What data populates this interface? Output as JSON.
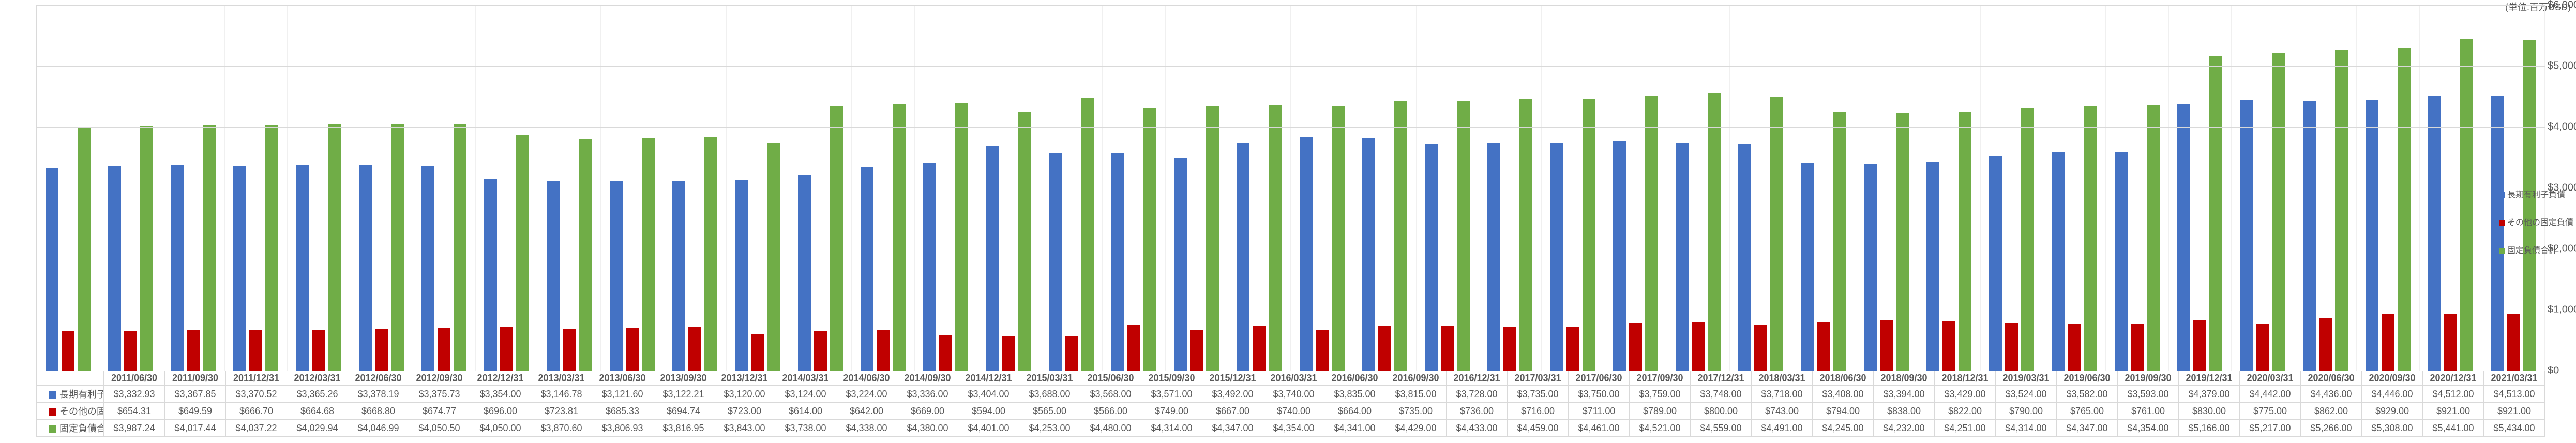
{
  "chart": {
    "type": "bar",
    "unit_label": "(単位:百万USD)",
    "ylim": [
      0,
      6000
    ],
    "ytick_step": 1000,
    "ytick_prefix": "$",
    "grid_color": "#d9d9d9",
    "background_color": "#ffffff",
    "series": [
      {
        "key": "s1",
        "label": "長期有利子負債",
        "color": "#4472c4"
      },
      {
        "key": "s2",
        "label": "その他の固定負債",
        "color": "#c00000"
      },
      {
        "key": "s3",
        "label": "固定負債合計",
        "color": "#70ad47"
      }
    ],
    "periods": [
      {
        "label": "2011/06/30",
        "s1": 3332.93,
        "s2": 654.31,
        "s3": 3987.24
      },
      {
        "label": "2011/09/30",
        "s1": 3367.85,
        "s2": 649.59,
        "s3": 4017.44
      },
      {
        "label": "2011/12/31",
        "s1": 3370.52,
        "s2": 666.7,
        "s3": 4037.22
      },
      {
        "label": "2012/03/31",
        "s1": 3365.26,
        "s2": 664.68,
        "s3": 4029.94
      },
      {
        "label": "2012/06/30",
        "s1": 3378.19,
        "s2": 668.8,
        "s3": 4046.99
      },
      {
        "label": "2012/09/30",
        "s1": 3375.73,
        "s2": 674.77,
        "s3": 4050.5
      },
      {
        "label": "2012/12/31",
        "s1": 3354.0,
        "s2": 696.0,
        "s3": 4050.0
      },
      {
        "label": "2013/03/31",
        "s1": 3146.78,
        "s2": 723.81,
        "s3": 3870.6
      },
      {
        "label": "2013/06/30",
        "s1": 3121.6,
        "s2": 685.33,
        "s3": 3806.93
      },
      {
        "label": "2013/09/30",
        "s1": 3122.21,
        "s2": 694.74,
        "s3": 3816.95
      },
      {
        "label": "2013/12/31",
        "s1": 3120.0,
        "s2": 723.0,
        "s3": 3843.0
      },
      {
        "label": "2014/03/31",
        "s1": 3124.0,
        "s2": 614.0,
        "s3": 3738.0
      },
      {
        "label": "2014/06/30",
        "s1": 3224.0,
        "s2": 642.0,
        "s3": 4338.0
      },
      {
        "label": "2014/09/30",
        "s1": 3336.0,
        "s2": 669.0,
        "s3": 4380.0
      },
      {
        "label": "2014/12/31",
        "s1": 3404.0,
        "s2": 594.0,
        "s3": 4401.0
      },
      {
        "label": "2015/03/31",
        "s1": 3688.0,
        "s2": 565.0,
        "s3": 4253.0
      },
      {
        "label": "2015/06/30",
        "s1": 3568.0,
        "s2": 566.0,
        "s3": 4480.0
      },
      {
        "label": "2015/09/30",
        "s1": 3571.0,
        "s2": 749.0,
        "s3": 4314.0
      },
      {
        "label": "2015/12/31",
        "s1": 3492.0,
        "s2": 667.0,
        "s3": 4347.0
      },
      {
        "label": "2016/03/31",
        "s1": 3740.0,
        "s2": 740.0,
        "s3": 4354.0
      },
      {
        "label": "2016/06/30",
        "s1": 3835.0,
        "s2": 664.0,
        "s3": 4341.0
      },
      {
        "label": "2016/09/30",
        "s1": 3815.0,
        "s2": 735.0,
        "s3": 4429.0
      },
      {
        "label": "2016/12/31",
        "s1": 3728.0,
        "s2": 736.0,
        "s3": 4433.0
      },
      {
        "label": "2017/03/31",
        "s1": 3735.0,
        "s2": 716.0,
        "s3": 4459.0
      },
      {
        "label": "2017/06/30",
        "s1": 3750.0,
        "s2": 711.0,
        "s3": 4461.0
      },
      {
        "label": "2017/09/30",
        "s1": 3759.0,
        "s2": 789.0,
        "s3": 4521.0
      },
      {
        "label": "2017/12/31",
        "s1": 3748.0,
        "s2": 800.0,
        "s3": 4559.0
      },
      {
        "label": "2018/03/31",
        "s1": 3718.0,
        "s2": 743.0,
        "s3": 4491.0
      },
      {
        "label": "2018/06/30",
        "s1": 3408.0,
        "s2": 794.0,
        "s3": 4245.0
      },
      {
        "label": "2018/09/30",
        "s1": 3394.0,
        "s2": 838.0,
        "s3": 4232.0
      },
      {
        "label": "2018/12/31",
        "s1": 3429.0,
        "s2": 822.0,
        "s3": 4251.0
      },
      {
        "label": "2019/03/31",
        "s1": 3524.0,
        "s2": 790.0,
        "s3": 4314.0
      },
      {
        "label": "2019/06/30",
        "s1": 3582.0,
        "s2": 765.0,
        "s3": 4347.0
      },
      {
        "label": "2019/09/30",
        "s1": 3593.0,
        "s2": 761.0,
        "s3": 4354.0
      },
      {
        "label": "2019/12/31",
        "s1": 4379.0,
        "s2": 830.0,
        "s3": 5166.0
      },
      {
        "label": "2020/03/31",
        "s1": 4442.0,
        "s2": 775.0,
        "s3": 5217.0
      },
      {
        "label": "2020/06/30",
        "s1": 4436.0,
        "s2": 862.0,
        "s3": 5266.0
      },
      {
        "label": "2020/09/30",
        "s1": 4446.0,
        "s2": 929.0,
        "s3": 5308.0
      },
      {
        "label": "2020/12/31",
        "s1": 4512.0,
        "s2": 921.0,
        "s3": 5441.0
      },
      {
        "label": "2021/03/31",
        "s1": 4513.0,
        "s2": 921.0,
        "s3": 5434.0
      }
    ]
  }
}
